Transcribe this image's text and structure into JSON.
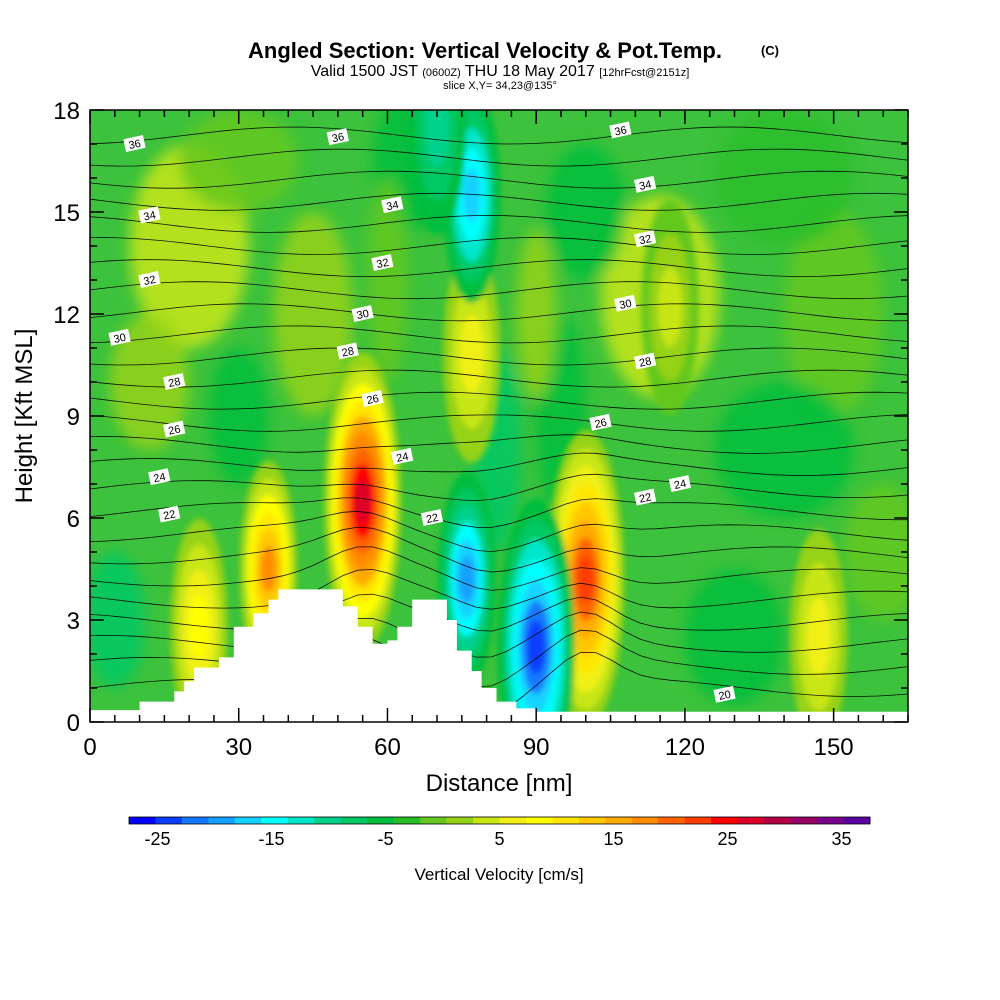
{
  "title": {
    "main": "Angled Section: Vertical Velocity & Pot.Temp.",
    "copyright": "(C)",
    "valid_prefix": "Valid 1500 JST",
    "valid_utc": "(0600Z)",
    "valid_date": "THU 18 May 2017",
    "forecast": "[12hrFcst@2151z]",
    "slice": "slice X,Y= 34,23@135°"
  },
  "chart_data": {
    "type": "heatmap",
    "xlabel": "Distance [nm]",
    "ylabel": "Height [Kft MSL]",
    "xlim": [
      0,
      165
    ],
    "ylim": [
      0,
      18
    ],
    "xticks": [
      0,
      30,
      60,
      90,
      120,
      150
    ],
    "yticks": [
      0,
      3,
      6,
      9,
      12,
      15,
      18
    ],
    "colorbar": {
      "label": "Vertical Velocity [cm/s]",
      "ticks": [
        -25,
        -15,
        -5,
        5,
        15,
        25,
        35
      ],
      "range": [
        -27.5,
        37.5
      ],
      "step": 2.5,
      "colors": [
        "#0000ff",
        "#0a3cff",
        "#1478ff",
        "#14a0ff",
        "#14d2ff",
        "#00ffff",
        "#00e6c8",
        "#00d28c",
        "#00c864",
        "#00be3c",
        "#28be28",
        "#64c81e",
        "#96d214",
        "#c8e614",
        "#f0f014",
        "#ffff00",
        "#ffe600",
        "#ffc800",
        "#ffaa00",
        "#ff8c00",
        "#ff6400",
        "#ff3c00",
        "#ff0000",
        "#dc0028",
        "#b40046",
        "#960064",
        "#78008c",
        "#5a00a0"
      ]
    },
    "vertical_velocity_cores": [
      {
        "x": 55,
        "y": 6.5,
        "value": 32
      },
      {
        "x": 100,
        "y": 4.2,
        "value": 26
      },
      {
        "x": 36,
        "y": 4.5,
        "value": 20
      },
      {
        "x": 22,
        "y": 2.8,
        "value": 12
      },
      {
        "x": 147,
        "y": 2.5,
        "value": 8
      },
      {
        "x": 77,
        "y": 10.8,
        "value": 8
      },
      {
        "x": 117,
        "y": 12.2,
        "value": 7
      },
      {
        "x": 90,
        "y": 2.2,
        "value": -24
      },
      {
        "x": 76,
        "y": 4.2,
        "value": -19
      },
      {
        "x": 77,
        "y": 15.5,
        "value": -17
      },
      {
        "x": 70,
        "y": 17.5,
        "value": -8
      }
    ],
    "theta_contour_labels": [
      {
        "text": "36",
        "x": 9,
        "y": 17.0
      },
      {
        "text": "36",
        "x": 50,
        "y": 17.2
      },
      {
        "text": "36",
        "x": 107,
        "y": 17.4
      },
      {
        "text": "34",
        "x": 12,
        "y": 14.9
      },
      {
        "text": "34",
        "x": 61,
        "y": 15.2
      },
      {
        "text": "34",
        "x": 112,
        "y": 15.8
      },
      {
        "text": "32",
        "x": 12,
        "y": 13.0
      },
      {
        "text": "32",
        "x": 59,
        "y": 13.5
      },
      {
        "text": "32",
        "x": 112,
        "y": 14.2
      },
      {
        "text": "30",
        "x": 6,
        "y": 11.3
      },
      {
        "text": "30",
        "x": 55,
        "y": 12.0
      },
      {
        "text": "30",
        "x": 108,
        "y": 12.3
      },
      {
        "text": "28",
        "x": 17,
        "y": 10.0
      },
      {
        "text": "28",
        "x": 52,
        "y": 10.9
      },
      {
        "text": "28",
        "x": 112,
        "y": 10.6
      },
      {
        "text": "26",
        "x": 17,
        "y": 8.6
      },
      {
        "text": "26",
        "x": 57,
        "y": 9.5
      },
      {
        "text": "26",
        "x": 103,
        "y": 8.8
      },
      {
        "text": "24",
        "x": 14,
        "y": 7.2
      },
      {
        "text": "24",
        "x": 63,
        "y": 7.8
      },
      {
        "text": "24",
        "x": 119,
        "y": 7.0
      },
      {
        "text": "22",
        "x": 16,
        "y": 6.1
      },
      {
        "text": "22",
        "x": 69,
        "y": 6.0
      },
      {
        "text": "22",
        "x": 112,
        "y": 6.6
      },
      {
        "text": "20",
        "x": 128,
        "y": 0.8
      }
    ],
    "terrain": [
      [
        10,
        0.6
      ],
      [
        17,
        0.9
      ],
      [
        19,
        1.2
      ],
      [
        21,
        1.6
      ],
      [
        26,
        1.9
      ],
      [
        29,
        2.8
      ],
      [
        33,
        3.2
      ],
      [
        36,
        3.6
      ],
      [
        38,
        3.9
      ],
      [
        41,
        3.9
      ],
      [
        46,
        3.9
      ],
      [
        51,
        3.4
      ],
      [
        54,
        2.8
      ],
      [
        57,
        2.3
      ],
      [
        60,
        2.4
      ],
      [
        62,
        2.8
      ],
      [
        65,
        3.6
      ],
      [
        70,
        3.6
      ],
      [
        72,
        3.0
      ],
      [
        74,
        2.1
      ],
      [
        77,
        1.5
      ],
      [
        79,
        1.0
      ],
      [
        82,
        0.6
      ],
      [
        86,
        0.4
      ],
      [
        90,
        0.3
      ]
    ]
  }
}
